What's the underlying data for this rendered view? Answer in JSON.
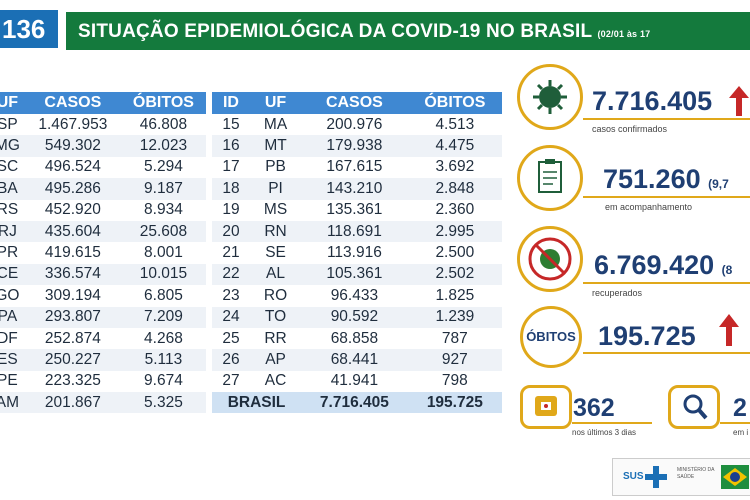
{
  "header": {
    "number": "136",
    "title": "SITUAÇÃO EPIDEMIOLÓGICA DA COVID-19 NO BRASIL",
    "date": "(02/01 às 17"
  },
  "left_table": {
    "headers": [
      "UF",
      "CASOS",
      "ÓBITOS"
    ],
    "rows": [
      [
        "SP",
        "1.467.953",
        "46.808"
      ],
      [
        "MG",
        "549.302",
        "12.023"
      ],
      [
        "SC",
        "496.524",
        "5.294"
      ],
      [
        "BA",
        "495.286",
        "9.187"
      ],
      [
        "RS",
        "452.920",
        "8.934"
      ],
      [
        "RJ",
        "435.604",
        "25.608"
      ],
      [
        "PR",
        "419.615",
        "8.001"
      ],
      [
        "CE",
        "336.574",
        "10.015"
      ],
      [
        "GO",
        "309.194",
        "6.805"
      ],
      [
        "PA",
        "293.807",
        "7.209"
      ],
      [
        "DF",
        "252.874",
        "4.268"
      ],
      [
        "ES",
        "250.227",
        "5.113"
      ],
      [
        "PE",
        "223.325",
        "9.674"
      ],
      [
        "AM",
        "201.867",
        "5.325"
      ]
    ]
  },
  "right_table": {
    "headers": [
      "ID",
      "UF",
      "CASOS",
      "ÓBITOS"
    ],
    "rows": [
      [
        "15",
        "MA",
        "200.976",
        "4.513"
      ],
      [
        "16",
        "MT",
        "179.938",
        "4.475"
      ],
      [
        "17",
        "PB",
        "167.615",
        "3.692"
      ],
      [
        "18",
        "PI",
        "143.210",
        "2.848"
      ],
      [
        "19",
        "MS",
        "135.361",
        "2.360"
      ],
      [
        "20",
        "RN",
        "118.691",
        "2.995"
      ],
      [
        "21",
        "SE",
        "113.916",
        "2.500"
      ],
      [
        "22",
        "AL",
        "105.361",
        "2.502"
      ],
      [
        "23",
        "RO",
        "96.433",
        "1.825"
      ],
      [
        "24",
        "TO",
        "90.592",
        "1.239"
      ],
      [
        "25",
        "RR",
        "68.858",
        "787"
      ],
      [
        "26",
        "AP",
        "68.441",
        "927"
      ],
      [
        "27",
        "AC",
        "41.941",
        "798"
      ]
    ],
    "total": [
      "BRASIL",
      "7.716.405",
      "195.725"
    ]
  },
  "kpis": {
    "confirmed": {
      "value": "7.716.405",
      "label": "casos confirmados"
    },
    "monitoring": {
      "value": "751.260",
      "pct": "(9,7",
      "label": "em acompanhamento"
    },
    "recovered": {
      "value": "6.769.420",
      "pct": "(8",
      "label": "recuperados"
    },
    "deaths": {
      "badge": "ÓBITOS",
      "value": "195.725"
    },
    "recent": {
      "value": "362",
      "label": "nos últimos 3 dias"
    },
    "investigation": {
      "value": "2",
      "label": "em i"
    }
  },
  "footer": {
    "sus": "SUS",
    "ministry": "MINISTÉRIO DA SAÚDE"
  },
  "colors": {
    "header_green": "#147a3d",
    "table_blue": "#3f88d2",
    "accent_gold": "#e0a81a",
    "kpi_text": "#1f3f73",
    "arrow_red": "#c62828"
  }
}
